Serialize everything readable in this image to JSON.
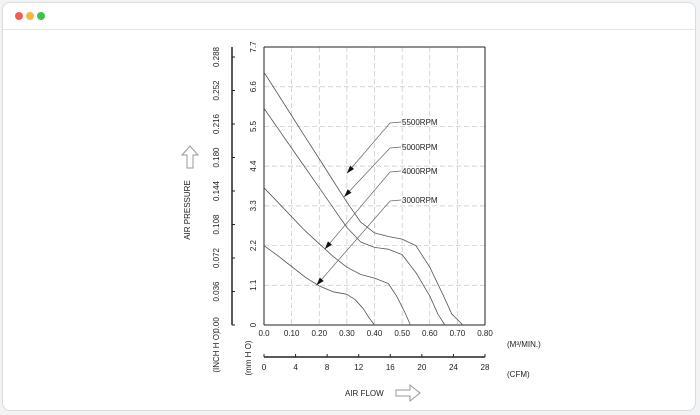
{
  "window": {
    "controls": [
      {
        "name": "close",
        "color": "#ee5f57"
      },
      {
        "name": "minimize",
        "color": "#f3b73b"
      },
      {
        "name": "maximize",
        "color": "#3ec24a"
      }
    ]
  },
  "chart_data": {
    "type": "line",
    "title": "",
    "x": {
      "label": "(M³/MIN.)",
      "range": [
        0,
        0.8
      ],
      "ticks": [
        "0.0",
        "0.10",
        "0.20",
        "0.30",
        "0.40",
        "0.50",
        "0.60",
        "0.70",
        "0.80"
      ]
    },
    "x2": {
      "label": "(CFM)",
      "range": [
        0,
        28
      ],
      "ticks": [
        "0",
        "4",
        "8",
        "12",
        "16",
        "20",
        "24",
        "28"
      ]
    },
    "y": {
      "label": "(mm H O)",
      "range": [
        0,
        7.7
      ],
      "ticks": [
        "0",
        "1.1",
        "2.2",
        "3.3",
        "4.4",
        "5.5",
        "6.6",
        "7.7"
      ]
    },
    "y2": {
      "label": "(INCH H O)",
      "ticks": [
        "0.00",
        "0.036",
        "0.072",
        "0.108",
        "0.144",
        "0.180",
        "0.216",
        "0.252",
        "0.288"
      ]
    },
    "xlabel": "AIR FLOW",
    "ylabel": "AIR PRESSURE",
    "grid": true,
    "series": [
      {
        "name": "5500RPM",
        "points": [
          [
            0,
            7.0
          ],
          [
            0.05,
            6.4
          ],
          [
            0.1,
            5.8
          ],
          [
            0.15,
            5.2
          ],
          [
            0.2,
            4.6
          ],
          [
            0.25,
            4.0
          ],
          [
            0.3,
            3.4
          ],
          [
            0.35,
            2.85
          ],
          [
            0.4,
            2.55
          ],
          [
            0.45,
            2.45
          ],
          [
            0.5,
            2.38
          ],
          [
            0.55,
            2.2
          ],
          [
            0.6,
            1.6
          ],
          [
            0.65,
            0.8
          ],
          [
            0.68,
            0.3
          ],
          [
            0.72,
            0
          ]
        ]
      },
      {
        "name": "5000RPM",
        "points": [
          [
            0,
            6.0
          ],
          [
            0.05,
            5.45
          ],
          [
            0.1,
            4.9
          ],
          [
            0.15,
            4.35
          ],
          [
            0.2,
            3.8
          ],
          [
            0.25,
            3.25
          ],
          [
            0.3,
            2.7
          ],
          [
            0.35,
            2.3
          ],
          [
            0.4,
            2.15
          ],
          [
            0.45,
            2.1
          ],
          [
            0.5,
            1.95
          ],
          [
            0.55,
            1.45
          ],
          [
            0.6,
            0.8
          ],
          [
            0.63,
            0.3
          ],
          [
            0.655,
            0
          ]
        ]
      },
      {
        "name": "4000RPM",
        "points": [
          [
            0,
            3.8
          ],
          [
            0.05,
            3.4
          ],
          [
            0.1,
            3.0
          ],
          [
            0.15,
            2.6
          ],
          [
            0.2,
            2.25
          ],
          [
            0.25,
            1.9
          ],
          [
            0.3,
            1.6
          ],
          [
            0.35,
            1.4
          ],
          [
            0.4,
            1.3
          ],
          [
            0.45,
            1.15
          ],
          [
            0.48,
            0.8
          ],
          [
            0.51,
            0.35
          ],
          [
            0.53,
            0
          ]
        ]
      },
      {
        "name": "3000RPM",
        "points": [
          [
            0,
            2.2
          ],
          [
            0.05,
            1.92
          ],
          [
            0.1,
            1.62
          ],
          [
            0.15,
            1.32
          ],
          [
            0.2,
            1.08
          ],
          [
            0.25,
            0.92
          ],
          [
            0.3,
            0.85
          ],
          [
            0.33,
            0.7
          ],
          [
            0.36,
            0.45
          ],
          [
            0.38,
            0.2
          ],
          [
            0.4,
            0
          ]
        ]
      }
    ],
    "annotations": [
      {
        "text": "5500RPM",
        "points_to": [
          0.3,
          4.2
        ]
      },
      {
        "text": "5000RPM",
        "points_to": [
          0.29,
          3.55
        ]
      },
      {
        "text": "4000RPM",
        "points_to": [
          0.22,
          2.1
        ]
      },
      {
        "text": "3000RPM",
        "points_to": [
          0.19,
          1.1
        ]
      }
    ]
  }
}
